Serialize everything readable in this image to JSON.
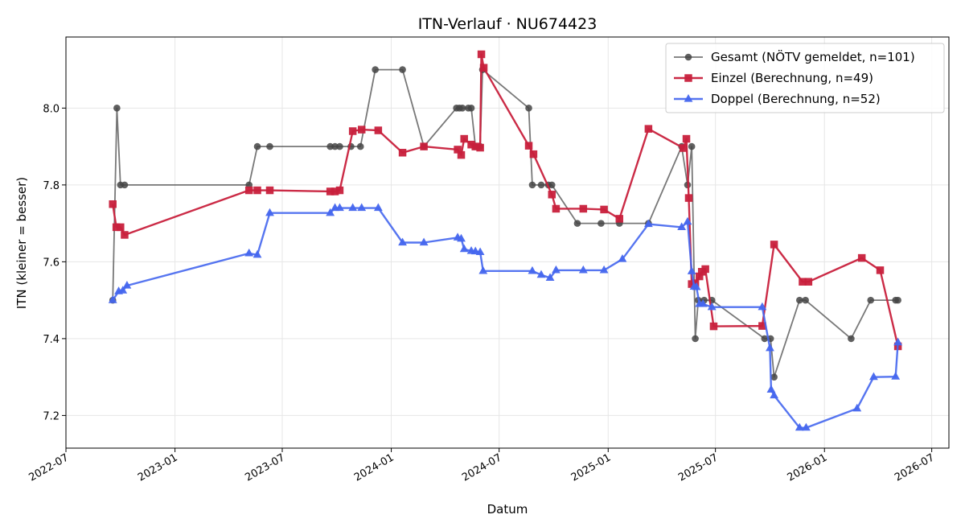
{
  "chart_data": {
    "type": "line",
    "title": "ITN-Verlauf · NU674423",
    "xlabel": "Datum",
    "ylabel": "ITN  (kleiner = besser)",
    "x_type": "date",
    "xlim": [
      "2022-07-01",
      "2026-07-30"
    ],
    "ylim": [
      7.115,
      8.185
    ],
    "x_ticks": [
      "2022-07-01",
      "2023-01-01",
      "2023-07-01",
      "2024-01-01",
      "2024-07-01",
      "2025-01-01",
      "2025-07-01",
      "2026-01-01",
      "2026-07-01"
    ],
    "x_tick_labels": [
      "2022-07",
      "2023-01",
      "2023-07",
      "2024-01",
      "2024-07",
      "2025-01",
      "2025-07",
      "2026-01",
      "2026-07"
    ],
    "y_ticks": [
      7.2,
      7.4,
      7.6,
      7.8,
      8.0
    ],
    "y_tick_labels": [
      "7.2",
      "7.4",
      "7.6",
      "7.8",
      "8.0"
    ],
    "grid": true,
    "legend_position": "top-right",
    "series": [
      {
        "name": "Gesamt (NÖTV gemeldet, n=101)",
        "color": "#444444",
        "marker": "circle",
        "points": [
          [
            "2022-09-18",
            7.5
          ],
          [
            "2022-09-25",
            8.0
          ],
          [
            "2022-10-01",
            7.8
          ],
          [
            "2022-10-08",
            7.8
          ],
          [
            "2023-05-06",
            7.8
          ],
          [
            "2023-05-20",
            7.9
          ],
          [
            "2023-06-10",
            7.9
          ],
          [
            "2023-09-20",
            7.9
          ],
          [
            "2023-09-28",
            7.9
          ],
          [
            "2023-10-06",
            7.9
          ],
          [
            "2023-10-25",
            7.9
          ],
          [
            "2023-11-10",
            7.9
          ],
          [
            "2023-12-05",
            8.1
          ],
          [
            "2024-01-20",
            8.1
          ],
          [
            "2024-02-25",
            7.9
          ],
          [
            "2024-04-20",
            8.0
          ],
          [
            "2024-04-25",
            8.0
          ],
          [
            "2024-04-30",
            8.0
          ],
          [
            "2024-05-10",
            8.0
          ],
          [
            "2024-05-15",
            8.0
          ],
          [
            "2024-05-22",
            7.9
          ],
          [
            "2024-05-30",
            7.9
          ],
          [
            "2024-06-03",
            8.1
          ],
          [
            "2024-08-20",
            8.0
          ],
          [
            "2024-08-26",
            7.8
          ],
          [
            "2024-09-10",
            7.8
          ],
          [
            "2024-09-22",
            7.8
          ],
          [
            "2024-09-28",
            7.8
          ],
          [
            "2024-11-10",
            7.7
          ],
          [
            "2024-12-20",
            7.7
          ],
          [
            "2025-01-20",
            7.7
          ],
          [
            "2025-03-10",
            7.7
          ],
          [
            "2025-05-05",
            7.9
          ],
          [
            "2025-05-15",
            7.8
          ],
          [
            "2025-05-22",
            7.9
          ],
          [
            "2025-05-28",
            7.4
          ],
          [
            "2025-06-02",
            7.5
          ],
          [
            "2025-06-12",
            7.5
          ],
          [
            "2025-06-25",
            7.5
          ],
          [
            "2025-09-22",
            7.4
          ],
          [
            "2025-10-02",
            7.4
          ],
          [
            "2025-10-08",
            7.3
          ],
          [
            "2025-11-20",
            7.5
          ],
          [
            "2025-11-30",
            7.5
          ],
          [
            "2026-02-15",
            7.4
          ],
          [
            "2026-03-20",
            7.5
          ],
          [
            "2026-05-01",
            7.5
          ],
          [
            "2026-05-05",
            7.5
          ]
        ]
      },
      {
        "name": "Einzel (Berechnung, n=49)",
        "color": "#c8203c",
        "marker": "square",
        "points": [
          [
            "2022-09-18",
            7.75
          ],
          [
            "2022-09-24",
            7.69
          ],
          [
            "2022-10-01",
            7.69
          ],
          [
            "2022-10-08",
            7.67
          ],
          [
            "2023-05-06",
            7.786
          ],
          [
            "2023-05-20",
            7.786
          ],
          [
            "2023-06-10",
            7.786
          ],
          [
            "2023-09-20",
            7.783
          ],
          [
            "2023-09-28",
            7.783
          ],
          [
            "2023-10-06",
            7.786
          ],
          [
            "2023-10-28",
            7.94
          ],
          [
            "2023-11-12",
            7.944
          ],
          [
            "2023-12-10",
            7.942
          ],
          [
            "2024-01-20",
            7.884
          ],
          [
            "2024-02-25",
            7.9
          ],
          [
            "2024-04-22",
            7.892
          ],
          [
            "2024-04-28",
            7.878
          ],
          [
            "2024-05-03",
            7.92
          ],
          [
            "2024-05-15",
            7.905
          ],
          [
            "2024-05-22",
            7.9
          ],
          [
            "2024-05-30",
            7.897
          ],
          [
            "2024-06-01",
            8.14
          ],
          [
            "2024-06-05",
            8.105
          ],
          [
            "2024-08-20",
            7.902
          ],
          [
            "2024-08-28",
            7.88
          ],
          [
            "2024-09-28",
            7.775
          ],
          [
            "2024-10-05",
            7.738
          ],
          [
            "2024-11-20",
            7.738
          ],
          [
            "2024-12-25",
            7.736
          ],
          [
            "2025-01-20",
            7.712
          ],
          [
            "2025-03-10",
            7.946
          ],
          [
            "2025-05-08",
            7.896
          ],
          [
            "2025-05-13",
            7.92
          ],
          [
            "2025-05-17",
            7.766
          ],
          [
            "2025-05-22",
            7.542
          ],
          [
            "2025-05-28",
            7.544
          ],
          [
            "2025-06-04",
            7.562
          ],
          [
            "2025-06-08",
            7.574
          ],
          [
            "2025-06-14",
            7.581
          ],
          [
            "2025-06-28",
            7.432
          ],
          [
            "2025-09-18",
            7.433
          ],
          [
            "2025-10-08",
            7.645
          ],
          [
            "2025-11-25",
            7.548
          ],
          [
            "2025-12-05",
            7.548
          ],
          [
            "2026-03-05",
            7.61
          ],
          [
            "2026-04-05",
            7.578
          ],
          [
            "2026-05-05",
            7.38
          ]
        ]
      },
      {
        "name": "Doppel (Berechnung, n=52)",
        "color": "#4466ee",
        "marker": "triangle",
        "points": [
          [
            "2022-09-18",
            7.5
          ],
          [
            "2022-09-28",
            7.523
          ],
          [
            "2022-10-05",
            7.525
          ],
          [
            "2022-10-12",
            7.538
          ],
          [
            "2023-05-06",
            7.622
          ],
          [
            "2023-05-20",
            7.618
          ],
          [
            "2023-06-10",
            7.727
          ],
          [
            "2023-09-20",
            7.727
          ],
          [
            "2023-09-28",
            7.74
          ],
          [
            "2023-10-06",
            7.74
          ],
          [
            "2023-10-28",
            7.74
          ],
          [
            "2023-11-12",
            7.74
          ],
          [
            "2023-12-10",
            7.74
          ],
          [
            "2024-01-20",
            7.65
          ],
          [
            "2024-02-25",
            7.65
          ],
          [
            "2024-04-22",
            7.663
          ],
          [
            "2024-04-28",
            7.66
          ],
          [
            "2024-05-03",
            7.633
          ],
          [
            "2024-05-15",
            7.628
          ],
          [
            "2024-05-22",
            7.627
          ],
          [
            "2024-05-30",
            7.625
          ],
          [
            "2024-06-04",
            7.576
          ],
          [
            "2024-08-26",
            7.576
          ],
          [
            "2024-09-10",
            7.566
          ],
          [
            "2024-09-25",
            7.558
          ],
          [
            "2024-10-05",
            7.578
          ],
          [
            "2024-11-20",
            7.578
          ],
          [
            "2024-12-25",
            7.578
          ],
          [
            "2025-01-25",
            7.607
          ],
          [
            "2025-03-10",
            7.698
          ],
          [
            "2025-05-05",
            7.69
          ],
          [
            "2025-05-15",
            7.704
          ],
          [
            "2025-05-22",
            7.575
          ],
          [
            "2025-05-26",
            7.535
          ],
          [
            "2025-05-30",
            7.534
          ],
          [
            "2025-06-04",
            7.49
          ],
          [
            "2025-06-10",
            7.49
          ],
          [
            "2025-06-25",
            7.482
          ],
          [
            "2025-09-18",
            7.482
          ],
          [
            "2025-10-01",
            7.375
          ],
          [
            "2025-10-03",
            7.267
          ],
          [
            "2025-10-08",
            7.252
          ],
          [
            "2025-11-20",
            7.168
          ],
          [
            "2025-12-01",
            7.168
          ],
          [
            "2026-02-25",
            7.218
          ],
          [
            "2026-03-25",
            7.3
          ],
          [
            "2026-05-01",
            7.301
          ],
          [
            "2026-05-05",
            7.39
          ]
        ]
      }
    ]
  }
}
